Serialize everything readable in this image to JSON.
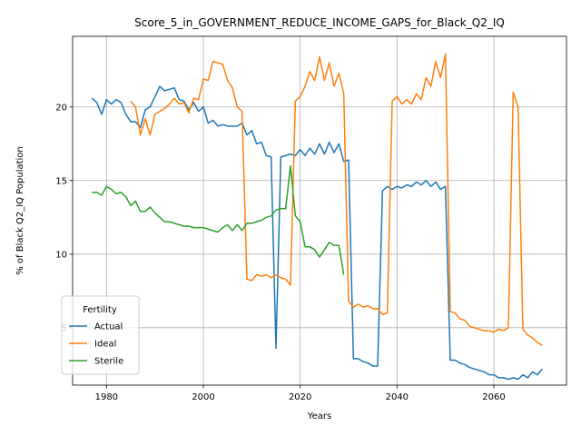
{
  "chart_data": {
    "type": "line",
    "title": "Score_5_in_GOVERNMENT_REDUCE_INCOME_GAPS_for_Black_Q2_IQ",
    "xlabel": "Years",
    "ylabel": "% of Black Q2_IQ Population",
    "xlim": [
      1973,
      2075
    ],
    "ylim": [
      1.1,
      24.8
    ],
    "xticks": [
      1980,
      2000,
      2020,
      2040,
      2060
    ],
    "yticks": [
      5,
      10,
      15,
      20
    ],
    "grid": true,
    "legend": {
      "title": "Fertility",
      "placement": "lower-left"
    },
    "series": [
      {
        "name": "Actual",
        "color": "#1f77b4",
        "points": [
          [
            1977,
            20.6
          ],
          [
            1978,
            20.3
          ],
          [
            1979,
            19.5
          ],
          [
            1980,
            20.5
          ],
          [
            1981,
            20.2
          ],
          [
            1982,
            20.5
          ],
          [
            1983,
            20.3
          ],
          [
            1984,
            19.5
          ],
          [
            1985,
            19.0
          ],
          [
            1986,
            19.0
          ],
          [
            1987,
            18.6
          ],
          [
            1988,
            19.8
          ],
          [
            1989,
            20.0
          ],
          [
            1990,
            20.7
          ],
          [
            1991,
            21.4
          ],
          [
            1992,
            21.1
          ],
          [
            1993,
            21.2
          ],
          [
            1994,
            21.3
          ],
          [
            1995,
            20.5
          ],
          [
            1996,
            20.4
          ],
          [
            1997,
            19.8
          ],
          [
            1998,
            20.3
          ],
          [
            1999,
            19.7
          ],
          [
            2000,
            20.0
          ],
          [
            2001,
            18.9
          ],
          [
            2002,
            19.1
          ],
          [
            2003,
            18.7
          ],
          [
            2004,
            18.8
          ],
          [
            2005,
            18.7
          ],
          [
            2006,
            18.7
          ],
          [
            2007,
            18.7
          ],
          [
            2008,
            18.9
          ],
          [
            2009,
            18.1
          ],
          [
            2010,
            18.4
          ],
          [
            2011,
            17.5
          ],
          [
            2012,
            17.6
          ],
          [
            2013,
            16.7
          ],
          [
            2014,
            16.6
          ],
          [
            2015,
            3.6
          ],
          [
            2016,
            16.6
          ],
          [
            2017,
            16.7
          ],
          [
            2018,
            16.8
          ],
          [
            2019,
            16.7
          ],
          [
            2020,
            17.1
          ],
          [
            2021,
            16.7
          ],
          [
            2022,
            17.2
          ],
          [
            2023,
            16.8
          ],
          [
            2024,
            17.5
          ],
          [
            2025,
            16.8
          ],
          [
            2026,
            17.6
          ],
          [
            2027,
            16.9
          ],
          [
            2028,
            17.5
          ],
          [
            2029,
            16.3
          ],
          [
            2030,
            16.4
          ],
          [
            2031,
            2.9
          ],
          [
            2032,
            2.9
          ],
          [
            2033,
            2.7
          ],
          [
            2034,
            2.6
          ],
          [
            2035,
            2.4
          ],
          [
            2036,
            2.4
          ],
          [
            2037,
            14.3
          ],
          [
            2038,
            14.6
          ],
          [
            2039,
            14.4
          ],
          [
            2040,
            14.6
          ],
          [
            2041,
            14.5
          ],
          [
            2042,
            14.7
          ],
          [
            2043,
            14.6
          ],
          [
            2044,
            14.9
          ],
          [
            2045,
            14.7
          ],
          [
            2046,
            15.0
          ],
          [
            2047,
            14.6
          ],
          [
            2048,
            14.9
          ],
          [
            2049,
            14.4
          ],
          [
            2050,
            14.6
          ],
          [
            2051,
            2.8
          ],
          [
            2052,
            2.8
          ],
          [
            2053,
            2.6
          ],
          [
            2054,
            2.5
          ],
          [
            2055,
            2.3
          ],
          [
            2056,
            2.2
          ],
          [
            2057,
            2.1
          ],
          [
            2058,
            2.0
          ],
          [
            2059,
            1.8
          ],
          [
            2060,
            1.8
          ],
          [
            2061,
            1.6
          ],
          [
            2062,
            1.6
          ],
          [
            2063,
            1.5
          ],
          [
            2064,
            1.6
          ],
          [
            2065,
            1.5
          ],
          [
            2066,
            1.8
          ],
          [
            2067,
            1.6
          ],
          [
            2068,
            2.0
          ],
          [
            2069,
            1.8
          ],
          [
            2070,
            2.2
          ]
        ]
      },
      {
        "name": "Ideal",
        "color": "#ff7f0e",
        "points": [
          [
            1985,
            20.4
          ],
          [
            1986,
            20.0
          ],
          [
            1987,
            18.1
          ],
          [
            1988,
            19.2
          ],
          [
            1989,
            18.1
          ],
          [
            1990,
            19.5
          ],
          [
            1991,
            19.7
          ],
          [
            1992,
            19.9
          ],
          [
            1993,
            20.2
          ],
          [
            1994,
            20.6
          ],
          [
            1995,
            20.2
          ],
          [
            1996,
            20.3
          ],
          [
            1997,
            19.6
          ],
          [
            1998,
            20.6
          ],
          [
            1999,
            20.5
          ],
          [
            2000,
            21.9
          ],
          [
            2001,
            21.8
          ],
          [
            2002,
            23.1
          ],
          [
            2003,
            23.0
          ],
          [
            2004,
            22.9
          ],
          [
            2005,
            21.8
          ],
          [
            2006,
            21.3
          ],
          [
            2007,
            20.0
          ],
          [
            2008,
            19.7
          ],
          [
            2009,
            8.3
          ],
          [
            2010,
            8.2
          ],
          [
            2011,
            8.6
          ],
          [
            2012,
            8.5
          ],
          [
            2013,
            8.6
          ],
          [
            2014,
            8.4
          ],
          [
            2015,
            8.6
          ],
          [
            2016,
            8.4
          ],
          [
            2017,
            8.3
          ],
          [
            2018,
            7.9
          ],
          [
            2019,
            20.4
          ],
          [
            2020,
            20.7
          ],
          [
            2021,
            21.4
          ],
          [
            2022,
            22.4
          ],
          [
            2023,
            21.8
          ],
          [
            2024,
            23.4
          ],
          [
            2025,
            21.8
          ],
          [
            2026,
            23.0
          ],
          [
            2027,
            21.4
          ],
          [
            2028,
            22.3
          ],
          [
            2029,
            20.9
          ],
          [
            2030,
            6.8
          ],
          [
            2031,
            6.4
          ],
          [
            2032,
            6.6
          ],
          [
            2033,
            6.4
          ],
          [
            2034,
            6.5
          ],
          [
            2035,
            6.3
          ],
          [
            2036,
            6.3
          ],
          [
            2037,
            5.9
          ],
          [
            2038,
            6.0
          ],
          [
            2039,
            20.4
          ],
          [
            2040,
            20.7
          ],
          [
            2041,
            20.2
          ],
          [
            2042,
            20.5
          ],
          [
            2043,
            20.2
          ],
          [
            2044,
            20.9
          ],
          [
            2045,
            20.5
          ],
          [
            2046,
            22.0
          ],
          [
            2047,
            21.4
          ],
          [
            2048,
            23.1
          ],
          [
            2049,
            22.0
          ],
          [
            2050,
            23.6
          ],
          [
            2051,
            6.1
          ],
          [
            2052,
            6.0
          ],
          [
            2053,
            5.6
          ],
          [
            2054,
            5.5
          ],
          [
            2055,
            5.1
          ],
          [
            2056,
            5.0
          ],
          [
            2057,
            4.9
          ],
          [
            2058,
            4.8
          ],
          [
            2059,
            4.8
          ],
          [
            2060,
            4.7
          ],
          [
            2061,
            4.9
          ],
          [
            2062,
            4.8
          ],
          [
            2063,
            5.0
          ],
          [
            2064,
            21.0
          ],
          [
            2065,
            20.0
          ],
          [
            2066,
            4.9
          ],
          [
            2067,
            4.5
          ],
          [
            2068,
            4.3
          ],
          [
            2069,
            4.0
          ],
          [
            2070,
            3.8
          ]
        ]
      },
      {
        "name": "Sterile",
        "color": "#2ca02c",
        "points": [
          [
            1977,
            14.2
          ],
          [
            1978,
            14.2
          ],
          [
            1979,
            14.0
          ],
          [
            1980,
            14.6
          ],
          [
            1981,
            14.4
          ],
          [
            1982,
            14.1
          ],
          [
            1983,
            14.2
          ],
          [
            1984,
            13.9
          ],
          [
            1985,
            13.3
          ],
          [
            1986,
            13.6
          ],
          [
            1987,
            12.9
          ],
          [
            1988,
            12.9
          ],
          [
            1989,
            13.2
          ],
          [
            1990,
            12.8
          ],
          [
            1991,
            12.5
          ],
          [
            1992,
            12.2
          ],
          [
            1993,
            12.2
          ],
          [
            1994,
            12.1
          ],
          [
            1995,
            12.0
          ],
          [
            1996,
            11.9
          ],
          [
            1997,
            11.9
          ],
          [
            1998,
            11.8
          ],
          [
            1999,
            11.8
          ],
          [
            2000,
            11.8
          ],
          [
            2001,
            11.7
          ],
          [
            2002,
            11.6
          ],
          [
            2003,
            11.5
          ],
          [
            2004,
            11.8
          ],
          [
            2005,
            12.0
          ],
          [
            2006,
            11.6
          ],
          [
            2007,
            12.0
          ],
          [
            2008,
            11.6
          ],
          [
            2009,
            12.1
          ],
          [
            2010,
            12.1
          ],
          [
            2011,
            12.2
          ],
          [
            2012,
            12.3
          ],
          [
            2013,
            12.5
          ],
          [
            2014,
            12.6
          ],
          [
            2015,
            13.0
          ],
          [
            2016,
            13.1
          ],
          [
            2017,
            13.1
          ],
          [
            2018,
            16.0
          ],
          [
            2019,
            12.6
          ],
          [
            2020,
            12.2
          ],
          [
            2021,
            10.5
          ],
          [
            2022,
            10.5
          ],
          [
            2023,
            10.3
          ],
          [
            2024,
            9.8
          ],
          [
            2025,
            10.3
          ],
          [
            2026,
            10.8
          ],
          [
            2027,
            10.6
          ],
          [
            2028,
            10.6
          ],
          [
            2029,
            8.6
          ]
        ]
      }
    ]
  }
}
